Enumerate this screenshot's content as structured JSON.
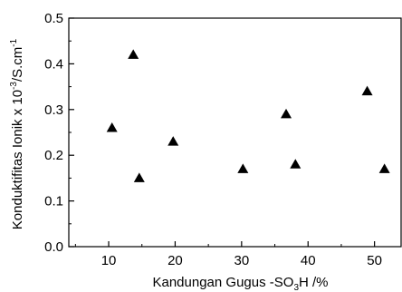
{
  "chart_data": {
    "type": "scatter",
    "xlabel": {
      "main": "Kandungan Gugus -SO",
      "sub": "3",
      "tail": "H /%"
    },
    "ylabel": {
      "main": "Konduktifitas Ionik x 10",
      "sup": "-3",
      "tail": "/S.cm",
      "sup2": "-1"
    },
    "xlim": [
      4,
      54
    ],
    "ylim": [
      0,
      0.5
    ],
    "xticks": [
      "10",
      "20",
      "30",
      "40",
      "50"
    ],
    "yticks": [
      "0.0",
      "0.1",
      "0.2",
      "0.3",
      "0.4",
      "0.5"
    ],
    "marker": "triangle",
    "marker_color": "#000000",
    "grid": false,
    "points": [
      {
        "x": 10.5,
        "y": 0.26
      },
      {
        "x": 13.7,
        "y": 0.42
      },
      {
        "x": 14.6,
        "y": 0.15
      },
      {
        "x": 19.7,
        "y": 0.23
      },
      {
        "x": 30.2,
        "y": 0.17
      },
      {
        "x": 36.7,
        "y": 0.29
      },
      {
        "x": 38.1,
        "y": 0.18
      },
      {
        "x": 48.9,
        "y": 0.34
      },
      {
        "x": 51.5,
        "y": 0.17
      }
    ]
  }
}
